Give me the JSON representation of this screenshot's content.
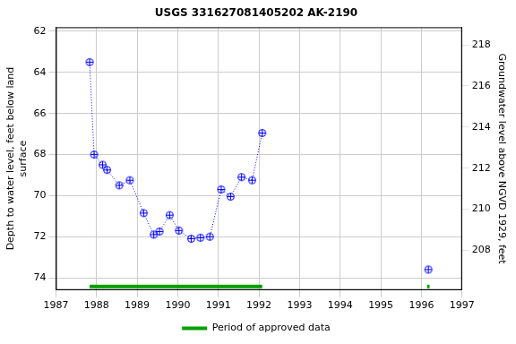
{
  "chart_data": {
    "type": "line",
    "title": "USGS 331627081405202 AK-2190",
    "ylabel": [
      "Depth to water level, feet below land",
      "surface"
    ],
    "y2label": "Groundwater level above NGVD 1929, feet",
    "xlim": [
      1987,
      1997
    ],
    "xticks": [
      1987,
      1988,
      1989,
      1990,
      1991,
      1992,
      1993,
      1994,
      1995,
      1996,
      1997
    ],
    "ylim": [
      74.6,
      61.8
    ],
    "yticks": [
      62,
      64,
      66,
      68,
      70,
      72,
      74
    ],
    "y2lim": [
      206.06,
      218.86
    ],
    "y2ticks": [
      208,
      210,
      212,
      214,
      216,
      218
    ],
    "grid": true,
    "legend": "bottom",
    "series": [
      {
        "color": "#0000ff",
        "marker": "circle_plus",
        "line_style": "dotted",
        "x": [
          1987.83,
          1987.94,
          1988.15,
          1988.26,
          1988.56,
          1988.82,
          1989.16,
          1989.41,
          1989.55,
          1989.8,
          1990.03,
          1990.33,
          1990.56,
          1990.79,
          1991.07,
          1991.3,
          1991.57,
          1991.83,
          1992.08
        ],
        "values": [
          63.5,
          68.0,
          68.5,
          68.75,
          69.5,
          69.25,
          70.85,
          71.9,
          71.75,
          70.95,
          71.7,
          72.1,
          72.05,
          72.0,
          69.7,
          70.05,
          69.1,
          69.25,
          66.95
        ]
      },
      {
        "color": "#0000ff",
        "marker": "circle_plus",
        "line_style": "none",
        "x": [
          1996.17
        ],
        "values": [
          73.6
        ]
      },
      {
        "name": "Period of approved data",
        "color": "#00a000",
        "type": "period",
        "ranges": [
          [
            1987.83,
            1992.08
          ],
          [
            1996.14,
            1996.2
          ]
        ]
      }
    ]
  }
}
